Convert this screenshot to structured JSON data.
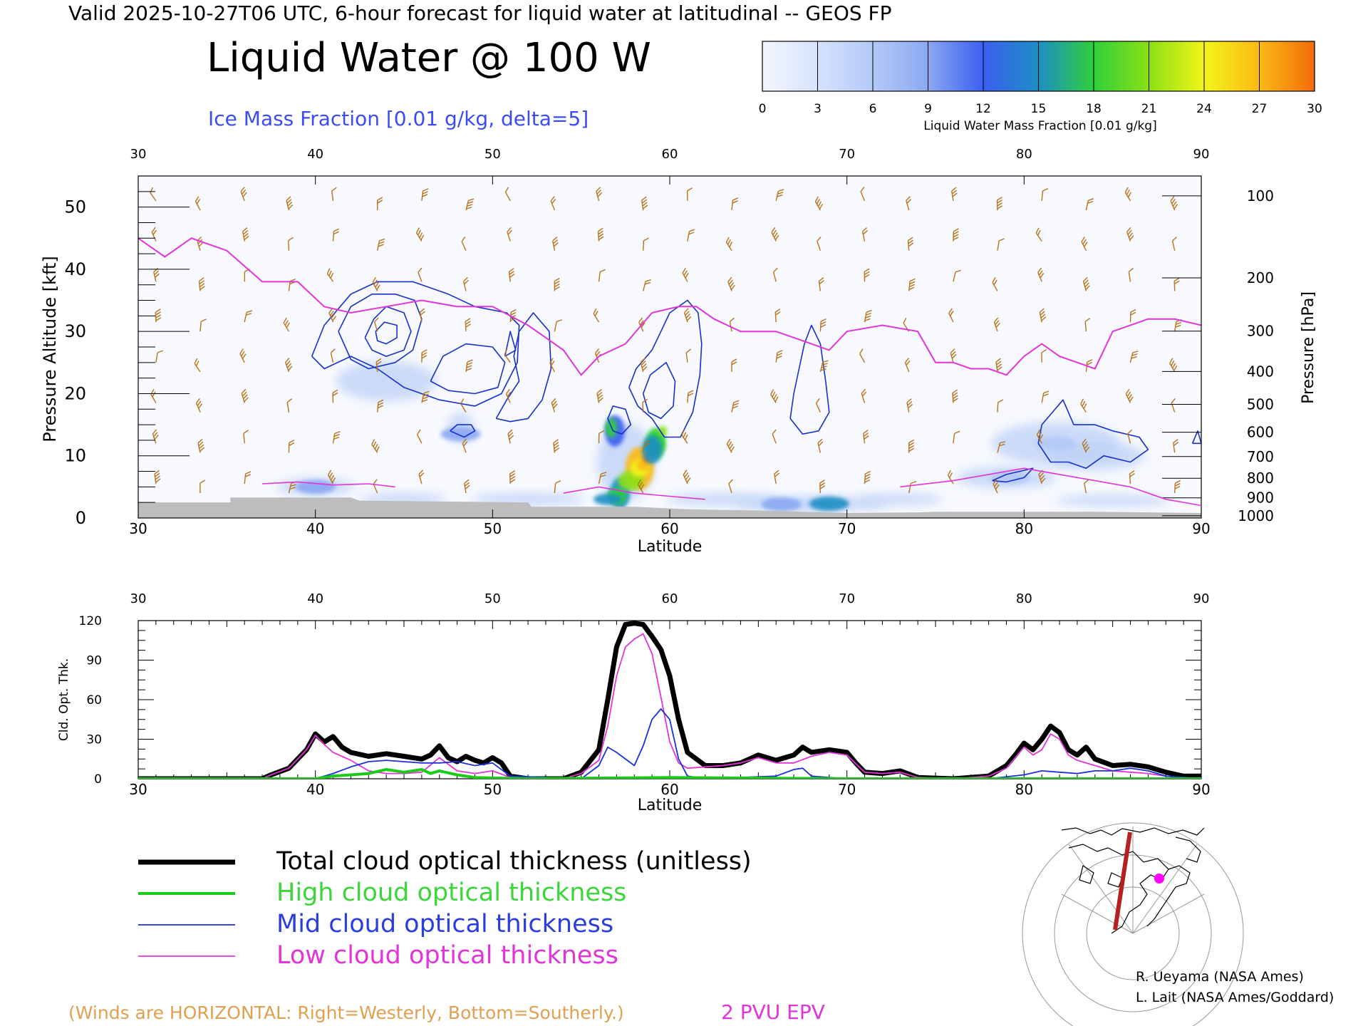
{
  "header": {
    "valid_line": "Valid 2025-10-27T06 UTC, 6-hour forecast for liquid water at latitudinal -- GEOS FP",
    "title": "Liquid Water @ 100 W",
    "subtitle": "Ice Mass Fraction [0.01 g/kg, delta=5]"
  },
  "colorbar": {
    "label": "Liquid Water Mass Fraction [0.01 g/kg]",
    "ticks": [
      "0",
      "3",
      "6",
      "9",
      "12",
      "15",
      "18",
      "21",
      "24",
      "27",
      "30"
    ],
    "colors": [
      "#f4f6fe",
      "#d6e2fb",
      "#b3c9f7",
      "#8ba8f2",
      "#3a5ff0",
      "#1e8ec4",
      "#2fd03a",
      "#8be014",
      "#f2f51a",
      "#fbb915",
      "#f26b0c"
    ]
  },
  "colors": {
    "liquid_light": "#bcd0f6",
    "liquid_blue": "#3d63e8",
    "ice_contour": "#1630c8",
    "epv": "#e234d8",
    "wind_barbs": "#b8741a",
    "terrain": "#bdbdbd",
    "total": "#000000",
    "high": "#18cc18",
    "mid": "#1832d8",
    "low": "#e234d8"
  },
  "chart_data": [
    {
      "type": "heatmap",
      "name": "cross-section",
      "x_axis": {
        "label": "Latitude",
        "range": [
          30,
          90
        ],
        "ticks": [
          "30",
          "40",
          "50",
          "60",
          "70",
          "80",
          "90"
        ]
      },
      "y_left": {
        "label": "Pressure Altitude [kft]",
        "range": [
          0,
          55
        ],
        "ticks": [
          "0",
          "10",
          "20",
          "30",
          "40",
          "50"
        ]
      },
      "y_right": {
        "label": "Pressure [hPa]",
        "ticks": [
          "100",
          "200",
          "300",
          "400",
          "500",
          "600",
          "700",
          "800",
          "900",
          "1000"
        ]
      },
      "liquid_water_blobs": [
        {
          "lat": 40.0,
          "alt": 5.0,
          "value": 9
        },
        {
          "lat": 48.2,
          "alt": 13.5,
          "value": 8
        },
        {
          "lat": 57.2,
          "alt": 4.0,
          "value": 14
        },
        {
          "lat": 58.3,
          "alt": 8.0,
          "value": 26
        },
        {
          "lat": 59.2,
          "alt": 12.0,
          "value": 17
        },
        {
          "lat": 56.9,
          "alt": 14.0,
          "value": 12
        },
        {
          "lat": 66.3,
          "alt": 2.2,
          "value": 8
        },
        {
          "lat": 69.0,
          "alt": 2.3,
          "value": 14
        },
        {
          "lat": 81.8,
          "alt": 12.0,
          "value": 5
        },
        {
          "lat": 79.2,
          "alt": 6.5,
          "value": 5
        }
      ],
      "epv_2pvu_kft": [
        [
          30.0,
          45.0
        ],
        [
          31.5,
          42.0
        ],
        [
          33.0,
          45.0
        ],
        [
          35.0,
          43.0
        ],
        [
          37.0,
          38.0
        ],
        [
          39.0,
          38.0
        ],
        [
          40.5,
          34.0
        ],
        [
          42.0,
          33.0
        ],
        [
          44.0,
          34.0
        ],
        [
          46.0,
          35.0
        ],
        [
          48.0,
          34.0
        ],
        [
          50.0,
          34.0
        ],
        [
          52.0,
          31.0
        ],
        [
          54.0,
          27.0
        ],
        [
          55.0,
          23.0
        ],
        [
          56.0,
          26.0
        ],
        [
          57.5,
          28.0
        ],
        [
          59.0,
          33.0
        ],
        [
          60.5,
          34.0
        ],
        [
          61.5,
          34.0
        ],
        [
          62.5,
          32.0
        ],
        [
          64.0,
          30.0
        ],
        [
          66.0,
          30.0
        ],
        [
          68.0,
          28.0
        ],
        [
          69.0,
          27.0
        ],
        [
          70.0,
          30.0
        ],
        [
          72.0,
          31.0
        ],
        [
          74.0,
          30.0
        ],
        [
          75.0,
          25.0
        ],
        [
          76.0,
          25.0
        ],
        [
          77.0,
          24.0
        ],
        [
          78.0,
          24.0
        ],
        [
          79.0,
          23.0
        ],
        [
          80.0,
          26.0
        ],
        [
          81.0,
          28.0
        ],
        [
          82.0,
          26.0
        ],
        [
          84.0,
          24.0
        ],
        [
          85.0,
          30.0
        ],
        [
          87.0,
          32.0
        ],
        [
          88.5,
          32.0
        ],
        [
          90.0,
          31.0
        ]
      ],
      "legend": {
        "winds_note": "(Winds are HORIZONTAL: Right=Westerly, Bottom=Southerly.)",
        "epv_label": "2 PVU EPV"
      }
    },
    {
      "type": "line",
      "name": "cloud-optical-thickness",
      "x_axis": {
        "label": "Latitude",
        "range": [
          30,
          90
        ],
        "ticks": [
          "30",
          "40",
          "50",
          "60",
          "70",
          "80",
          "90"
        ]
      },
      "y_axis": {
        "label": "Cld. Opt. Thk.",
        "range": [
          0,
          120
        ],
        "ticks": [
          "0",
          "30",
          "60",
          "90",
          "120"
        ]
      },
      "series": [
        {
          "name": "Total cloud optical thickness (unitless)",
          "color": "#000000",
          "points": [
            [
              30,
              0
            ],
            [
              37,
              0
            ],
            [
              37.5,
              3
            ],
            [
              38.5,
              8
            ],
            [
              39.5,
              22
            ],
            [
              40,
              34
            ],
            [
              40.5,
              28
            ],
            [
              41,
              32
            ],
            [
              41.5,
              24
            ],
            [
              42,
              20
            ],
            [
              43,
              17
            ],
            [
              44,
              19
            ],
            [
              45,
              17
            ],
            [
              46,
              15
            ],
            [
              46.5,
              18
            ],
            [
              47,
              25
            ],
            [
              47.5,
              16
            ],
            [
              48,
              13
            ],
            [
              48.5,
              17
            ],
            [
              49,
              14
            ],
            [
              49.5,
              12
            ],
            [
              50,
              16
            ],
            [
              50.5,
              12
            ],
            [
              51,
              2
            ],
            [
              52,
              0
            ],
            [
              54,
              0
            ],
            [
              55,
              5
            ],
            [
              56,
              22
            ],
            [
              56.5,
              60
            ],
            [
              57,
              100
            ],
            [
              57.5,
              117
            ],
            [
              58,
              118
            ],
            [
              58.5,
              117
            ],
            [
              59,
              108
            ],
            [
              59.5,
              98
            ],
            [
              60,
              78
            ],
            [
              60.5,
              45
            ],
            [
              61,
              20
            ],
            [
              62,
              10
            ],
            [
              63,
              10
            ],
            [
              64,
              12
            ],
            [
              65,
              18
            ],
            [
              66,
              14
            ],
            [
              67,
              18
            ],
            [
              67.5,
              24
            ],
            [
              68,
              20
            ],
            [
              69,
              22
            ],
            [
              70,
              20
            ],
            [
              70.5,
              12
            ],
            [
              71,
              5
            ],
            [
              72,
              4
            ],
            [
              73,
              6
            ],
            [
              74,
              1
            ],
            [
              76,
              0
            ],
            [
              78,
              2
            ],
            [
              79,
              10
            ],
            [
              79.5,
              18
            ],
            [
              80,
              27
            ],
            [
              80.5,
              22
            ],
            [
              81,
              30
            ],
            [
              81.5,
              40
            ],
            [
              82,
              35
            ],
            [
              82.5,
              22
            ],
            [
              83,
              18
            ],
            [
              83.5,
              24
            ],
            [
              84,
              15
            ],
            [
              85,
              10
            ],
            [
              86,
              11
            ],
            [
              87,
              9
            ],
            [
              88,
              5
            ],
            [
              89,
              2
            ],
            [
              90,
              2
            ]
          ]
        },
        {
          "name": "High cloud optical thickness",
          "color": "#18cc18",
          "points": [
            [
              30,
              0
            ],
            [
              40,
              0
            ],
            [
              41,
              2
            ],
            [
              42,
              3
            ],
            [
              43,
              4
            ],
            [
              44,
              7
            ],
            [
              45,
              5
            ],
            [
              46,
              7
            ],
            [
              46.5,
              4
            ],
            [
              47,
              6
            ],
            [
              48,
              3
            ],
            [
              49,
              1
            ],
            [
              52,
              0
            ],
            [
              60,
              1
            ],
            [
              70,
              0
            ],
            [
              90,
              0
            ]
          ]
        },
        {
          "name": "Mid cloud optical thickness",
          "color": "#1832d8",
          "points": [
            [
              30,
              0
            ],
            [
              40,
              0
            ],
            [
              41,
              4
            ],
            [
              42,
              9
            ],
            [
              43,
              13
            ],
            [
              44,
              14
            ],
            [
              45,
              13
            ],
            [
              46,
              12
            ],
            [
              47,
              12
            ],
            [
              48,
              13
            ],
            [
              49,
              10
            ],
            [
              50,
              12
            ],
            [
              51,
              2
            ],
            [
              55,
              0
            ],
            [
              56,
              10
            ],
            [
              56.5,
              24
            ],
            [
              57,
              20
            ],
            [
              58,
              10
            ],
            [
              58.5,
              25
            ],
            [
              59,
              45
            ],
            [
              59.5,
              53
            ],
            [
              60,
              45
            ],
            [
              60.5,
              15
            ],
            [
              61,
              2
            ],
            [
              62,
              0
            ],
            [
              66,
              2
            ],
            [
              67,
              7
            ],
            [
              67.5,
              8
            ],
            [
              68,
              2
            ],
            [
              70,
              0
            ],
            [
              78,
              0
            ],
            [
              80,
              3
            ],
            [
              81,
              6
            ],
            [
              82,
              5
            ],
            [
              83,
              4
            ],
            [
              84,
              6
            ],
            [
              85,
              6
            ],
            [
              86,
              8
            ],
            [
              87,
              6
            ],
            [
              88,
              2
            ],
            [
              90,
              0
            ]
          ]
        },
        {
          "name": "Low cloud optical thickness",
          "color": "#e234d8",
          "points": [
            [
              30,
              0
            ],
            [
              37,
              0
            ],
            [
              37.5,
              3
            ],
            [
              38.5,
              8
            ],
            [
              39.5,
              22
            ],
            [
              40,
              33
            ],
            [
              40.5,
              26
            ],
            [
              41,
              20
            ],
            [
              42,
              14
            ],
            [
              43,
              6
            ],
            [
              44,
              4
            ],
            [
              45,
              4
            ],
            [
              46,
              5
            ],
            [
              47,
              16
            ],
            [
              48,
              6
            ],
            [
              49,
              4
            ],
            [
              50,
              6
            ],
            [
              51,
              1
            ],
            [
              54,
              0
            ],
            [
              55,
              4
            ],
            [
              56,
              14
            ],
            [
              56.5,
              40
            ],
            [
              57,
              78
            ],
            [
              57.5,
              100
            ],
            [
              58,
              106
            ],
            [
              58.5,
              110
            ],
            [
              59,
              95
            ],
            [
              59.5,
              62
            ],
            [
              60,
              28
            ],
            [
              60.5,
              12
            ],
            [
              61,
              8
            ],
            [
              62,
              9
            ],
            [
              63,
              10
            ],
            [
              64,
              12
            ],
            [
              65,
              16
            ],
            [
              66,
              12
            ],
            [
              67,
              12
            ],
            [
              68,
              17
            ],
            [
              69,
              20
            ],
            [
              70,
              18
            ],
            [
              71,
              5
            ],
            [
              72,
              4
            ],
            [
              73,
              5
            ],
            [
              74,
              1
            ],
            [
              76,
              0
            ],
            [
              78,
              2
            ],
            [
              79,
              8
            ],
            [
              80,
              24
            ],
            [
              80.5,
              18
            ],
            [
              81,
              22
            ],
            [
              81.5,
              34
            ],
            [
              82,
              30
            ],
            [
              82.5,
              18
            ],
            [
              83,
              14
            ],
            [
              84,
              10
            ],
            [
              85,
              6
            ],
            [
              86,
              5
            ],
            [
              87,
              4
            ],
            [
              88,
              2
            ],
            [
              90,
              0
            ]
          ]
        }
      ]
    }
  ],
  "credits": [
    "R. Ueyama (NASA Ames)",
    "L. Lait (NASA Ames/Goddard)"
  ]
}
